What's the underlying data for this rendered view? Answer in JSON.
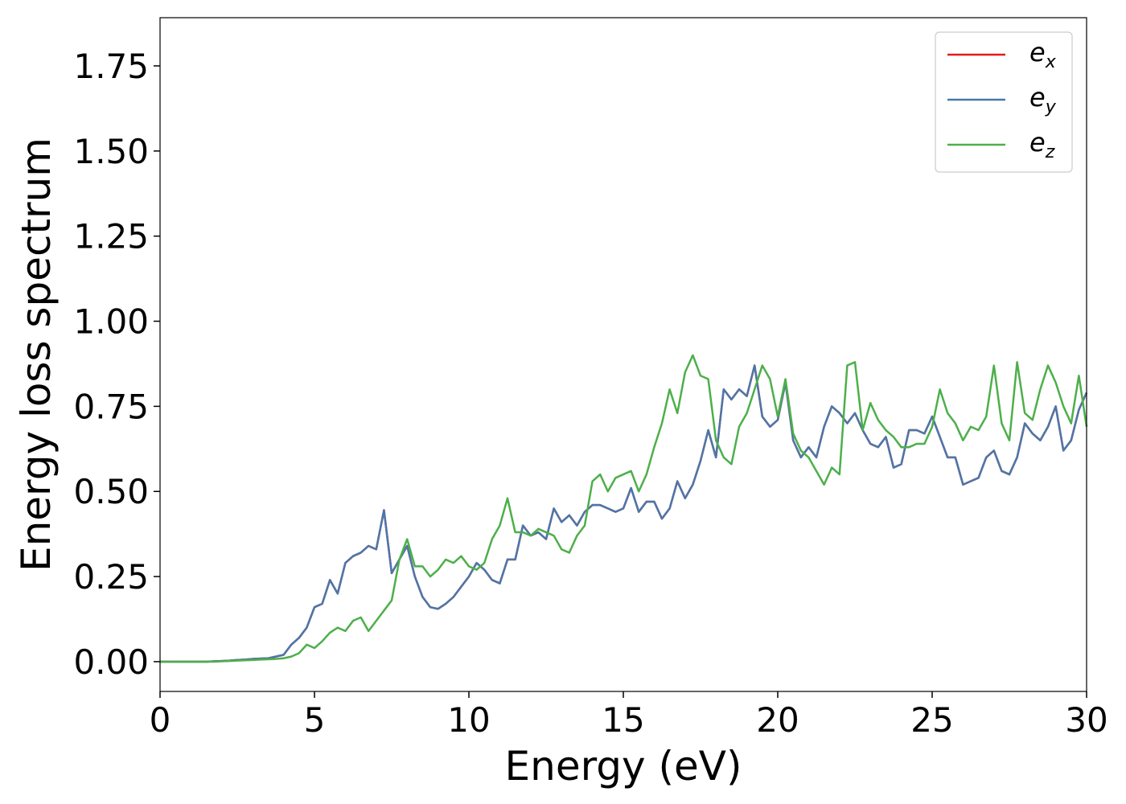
{
  "chart_data": {
    "type": "line",
    "xlabel": "Energy (eV)",
    "ylabel": "Energy loss spectrum",
    "x": [
      0,
      0.25,
      0.5,
      0.75,
      1,
      1.25,
      1.5,
      1.75,
      2,
      2.25,
      2.5,
      2.75,
      3,
      3.25,
      3.5,
      3.75,
      4,
      4.25,
      4.5,
      4.75,
      5,
      5.25,
      5.5,
      5.75,
      6,
      6.25,
      6.5,
      6.75,
      7,
      7.25,
      7.5,
      7.75,
      8,
      8.25,
      8.5,
      8.75,
      9,
      9.25,
      9.5,
      9.75,
      10,
      10.25,
      10.5,
      10.75,
      11,
      11.25,
      11.5,
      11.75,
      12,
      12.25,
      12.5,
      12.75,
      13,
      13.25,
      13.5,
      13.75,
      14,
      14.25,
      14.5,
      14.75,
      15,
      15.25,
      15.5,
      15.75,
      16,
      16.25,
      16.5,
      16.75,
      17,
      17.25,
      17.5,
      17.75,
      18,
      18.25,
      18.5,
      18.75,
      19,
      19.25,
      19.5,
      19.75,
      20,
      20.25,
      20.5,
      20.75,
      21,
      21.25,
      21.5,
      21.75,
      22,
      22.25,
      22.5,
      22.75,
      23,
      23.25,
      23.5,
      23.75,
      24,
      24.25,
      24.5,
      24.75,
      25,
      25.25,
      25.5,
      25.75,
      26,
      26.25,
      26.5,
      26.75,
      27,
      27.25,
      27.5,
      27.75,
      28,
      28.25,
      28.5,
      28.75,
      29,
      29.25,
      29.5,
      29.75,
      30
    ],
    "series": [
      {
        "name": "ex",
        "color": "#e41a1c",
        "values": [
          0,
          0,
          0,
          0,
          0,
          0,
          0,
          0.001,
          0.002,
          0.003,
          0.005,
          0.006,
          0.008,
          0.009,
          0.01,
          0.015,
          0.02,
          0.05,
          0.07,
          0.1,
          0.16,
          0.17,
          0.24,
          0.2,
          0.29,
          0.31,
          0.32,
          0.34,
          0.33,
          0.445,
          0.26,
          0.3,
          0.34,
          0.25,
          0.19,
          0.16,
          0.155,
          0.17,
          0.19,
          0.22,
          0.25,
          0.29,
          0.27,
          0.24,
          0.23,
          0.3,
          0.3,
          0.4,
          0.37,
          0.38,
          0.36,
          0.45,
          0.41,
          0.43,
          0.4,
          0.44,
          0.46,
          0.46,
          0.45,
          0.44,
          0.45,
          0.51,
          0.44,
          0.47,
          0.47,
          0.42,
          0.45,
          0.53,
          0.48,
          0.52,
          0.59,
          0.68,
          0.6,
          0.8,
          0.77,
          0.8,
          0.78,
          0.87,
          0.72,
          0.69,
          0.71,
          0.82,
          0.65,
          0.6,
          0.63,
          0.6,
          0.69,
          0.75,
          0.73,
          0.7,
          0.73,
          0.68,
          0.64,
          0.63,
          0.66,
          0.57,
          0.58,
          0.68,
          0.68,
          0.67,
          0.72,
          0.66,
          0.6,
          0.6,
          0.52,
          0.53,
          0.54,
          0.6,
          0.62,
          0.56,
          0.55,
          0.6,
          0.7,
          0.67,
          0.65,
          0.69,
          0.75,
          0.62,
          0.65,
          0.74,
          0.79
        ]
      },
      {
        "name": "ey",
        "color": "#4a77aa",
        "values": [
          0,
          0,
          0,
          0,
          0,
          0,
          0,
          0.001,
          0.002,
          0.003,
          0.005,
          0.006,
          0.008,
          0.009,
          0.01,
          0.015,
          0.02,
          0.05,
          0.07,
          0.1,
          0.16,
          0.17,
          0.24,
          0.2,
          0.29,
          0.31,
          0.32,
          0.34,
          0.33,
          0.445,
          0.26,
          0.3,
          0.34,
          0.25,
          0.19,
          0.16,
          0.155,
          0.17,
          0.19,
          0.22,
          0.25,
          0.29,
          0.27,
          0.24,
          0.23,
          0.3,
          0.3,
          0.4,
          0.37,
          0.38,
          0.36,
          0.45,
          0.41,
          0.43,
          0.4,
          0.44,
          0.46,
          0.46,
          0.45,
          0.44,
          0.45,
          0.51,
          0.44,
          0.47,
          0.47,
          0.42,
          0.45,
          0.53,
          0.48,
          0.52,
          0.59,
          0.68,
          0.6,
          0.8,
          0.77,
          0.8,
          0.78,
          0.87,
          0.72,
          0.69,
          0.71,
          0.82,
          0.65,
          0.6,
          0.63,
          0.6,
          0.69,
          0.75,
          0.73,
          0.7,
          0.73,
          0.68,
          0.64,
          0.63,
          0.66,
          0.57,
          0.58,
          0.68,
          0.68,
          0.67,
          0.72,
          0.66,
          0.6,
          0.6,
          0.52,
          0.53,
          0.54,
          0.6,
          0.62,
          0.56,
          0.55,
          0.6,
          0.7,
          0.67,
          0.65,
          0.69,
          0.75,
          0.62,
          0.65,
          0.74,
          0.79
        ]
      },
      {
        "name": "ez",
        "color": "#4daf4a",
        "values": [
          0,
          0,
          0,
          0,
          0,
          0,
          0,
          0,
          0.001,
          0.002,
          0.003,
          0.004,
          0.005,
          0.006,
          0.007,
          0.008,
          0.01,
          0.015,
          0.025,
          0.05,
          0.04,
          0.06,
          0.085,
          0.1,
          0.09,
          0.12,
          0.13,
          0.09,
          0.12,
          0.15,
          0.18,
          0.3,
          0.36,
          0.28,
          0.28,
          0.25,
          0.27,
          0.3,
          0.29,
          0.31,
          0.28,
          0.27,
          0.29,
          0.36,
          0.4,
          0.48,
          0.38,
          0.38,
          0.37,
          0.39,
          0.38,
          0.37,
          0.33,
          0.32,
          0.37,
          0.4,
          0.53,
          0.55,
          0.5,
          0.54,
          0.55,
          0.56,
          0.5,
          0.55,
          0.63,
          0.7,
          0.8,
          0.73,
          0.85,
          0.9,
          0.84,
          0.83,
          0.65,
          0.6,
          0.58,
          0.69,
          0.73,
          0.8,
          0.87,
          0.83,
          0.72,
          0.83,
          0.67,
          0.62,
          0.6,
          0.56,
          0.52,
          0.57,
          0.55,
          0.87,
          0.88,
          0.68,
          0.76,
          0.71,
          0.68,
          0.66,
          0.63,
          0.63,
          0.64,
          0.64,
          0.69,
          0.8,
          0.73,
          0.7,
          0.65,
          0.69,
          0.68,
          0.72,
          0.87,
          0.7,
          0.65,
          0.88,
          0.73,
          0.71,
          0.8,
          0.87,
          0.82,
          0.75,
          0.7,
          0.84,
          0.69
        ]
      }
    ],
    "xlim": [
      0,
      30
    ],
    "xticks": [
      0,
      5,
      10,
      15,
      20,
      25,
      30
    ],
    "ylim": [
      -0.0875,
      1.8916
    ],
    "yticks": [
      {
        "value": 0,
        "label": "0.00"
      },
      0.25,
      {
        "value": 0.5,
        "label": "0.50"
      },
      0.75,
      {
        "value": 1,
        "label": "1.00"
      },
      1.25,
      {
        "value": 1.5,
        "label": "1.50"
      },
      1.75
    ],
    "legend_loc": "upper right"
  }
}
